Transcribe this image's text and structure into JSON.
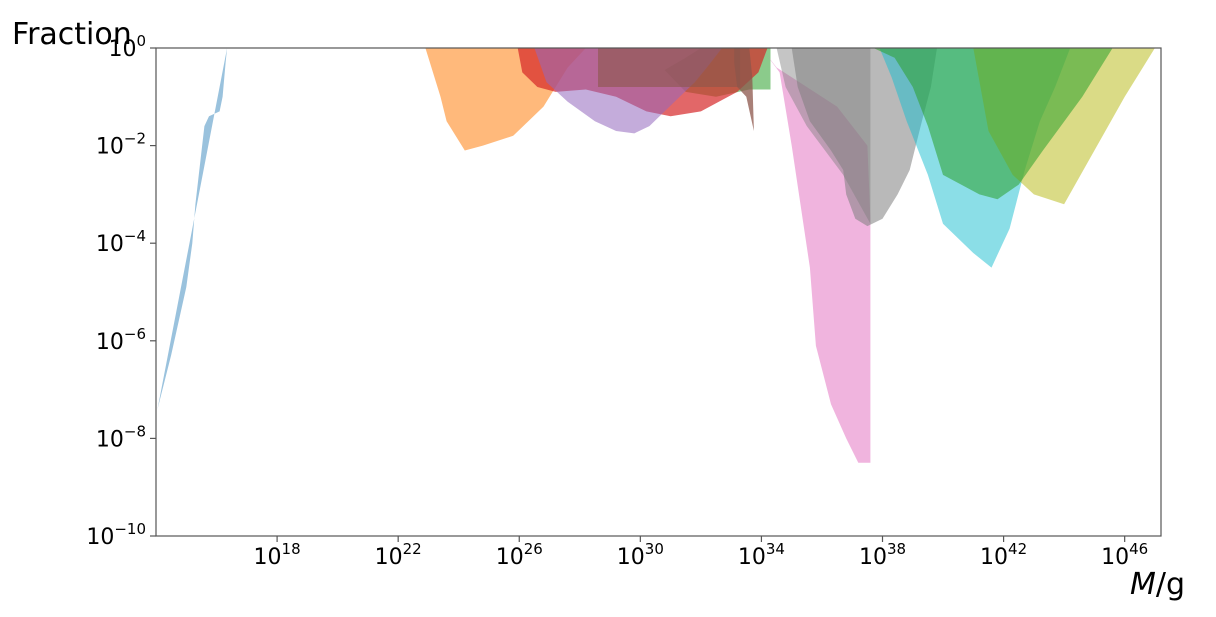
{
  "chart_data": {
    "type": "area",
    "title": "",
    "ylabel": "Fraction",
    "xlabel_italic": "M",
    "xlabel_rest": "/g",
    "x_scale": "log10",
    "y_scale": "log10",
    "xlim_log10": [
      14.0,
      47.2
    ],
    "ylim_log10": [
      -10,
      0
    ],
    "grid": false,
    "x_ticks": [
      {
        "exp": 18,
        "base": "10",
        "sup": "18"
      },
      {
        "exp": 22,
        "base": "10",
        "sup": "22"
      },
      {
        "exp": 26,
        "base": "10",
        "sup": "26"
      },
      {
        "exp": 30,
        "base": "10",
        "sup": "30"
      },
      {
        "exp": 34,
        "base": "10",
        "sup": "34"
      },
      {
        "exp": 38,
        "base": "10",
        "sup": "38"
      },
      {
        "exp": 42,
        "base": "10",
        "sup": "42"
      },
      {
        "exp": 46,
        "base": "10",
        "sup": "46"
      }
    ],
    "y_ticks": [
      {
        "exp": 0,
        "base": "10",
        "sup": "0"
      },
      {
        "exp": -2,
        "base": "10",
        "sup": "−2"
      },
      {
        "exp": -4,
        "base": "10",
        "sup": "−4"
      },
      {
        "exp": -6,
        "base": "10",
        "sup": "−6"
      },
      {
        "exp": -8,
        "base": "10",
        "sup": "−8"
      },
      {
        "exp": -10,
        "base": "10",
        "sup": "−10"
      }
    ],
    "series": [
      {
        "color": "#1f77b4",
        "opacity": 0.45,
        "points": [
          [
            14.05,
            -7.4
          ],
          [
            14.5,
            -6.3
          ],
          [
            15.0,
            -4.9
          ],
          [
            15.2,
            -4.0
          ],
          [
            15.3,
            -3.2
          ],
          [
            15.6,
            -1.6
          ],
          [
            15.75,
            -1.4
          ],
          [
            16.1,
            -1.3
          ],
          [
            16.2,
            -1.0
          ],
          [
            16.3,
            -0.3
          ],
          [
            16.35,
            0
          ]
        ]
      },
      {
        "color": "#ff7f0e",
        "opacity": 0.55,
        "points": [
          [
            22.9,
            0
          ],
          [
            23.4,
            -1.0
          ],
          [
            23.6,
            -1.5
          ],
          [
            24.2,
            -2.1
          ],
          [
            24.8,
            -2.0
          ],
          [
            25.8,
            -1.8
          ],
          [
            26.8,
            -1.2
          ],
          [
            27.6,
            -0.4
          ],
          [
            28.2,
            0
          ]
        ]
      },
      {
        "color": "#2ca02c",
        "opacity": 0.55,
        "points": [
          [
            30.8,
            -0.45
          ],
          [
            31.5,
            -0.2
          ],
          [
            32.0,
            0
          ],
          [
            33.5,
            0
          ],
          [
            34.3,
            0
          ],
          [
            34.3,
            -0.85
          ],
          [
            33.6,
            -0.85
          ],
          [
            32.5,
            -1.0
          ],
          [
            31.5,
            -0.9
          ]
        ]
      },
      {
        "color": "#d62728",
        "opacity": 0.7,
        "points": [
          [
            25.95,
            0
          ],
          [
            26.1,
            -0.5
          ],
          [
            26.6,
            -0.8
          ],
          [
            27.2,
            -0.9
          ],
          [
            28.2,
            -0.85
          ],
          [
            29.2,
            -1.0
          ],
          [
            30.2,
            -1.3
          ],
          [
            31.0,
            -1.4
          ],
          [
            32.0,
            -1.3
          ],
          [
            33.2,
            -0.9
          ],
          [
            33.9,
            -0.5
          ],
          [
            34.2,
            0
          ]
        ]
      },
      {
        "color": "#9467bd",
        "opacity": 0.55,
        "points": [
          [
            26.5,
            0
          ],
          [
            26.9,
            -0.7
          ],
          [
            27.6,
            -1.1
          ],
          [
            28.5,
            -1.5
          ],
          [
            29.2,
            -1.7
          ],
          [
            29.8,
            -1.75
          ],
          [
            30.3,
            -1.6
          ],
          [
            30.8,
            -1.3
          ],
          [
            31.3,
            -1.0
          ],
          [
            31.8,
            -0.7
          ],
          [
            32.2,
            -0.4
          ],
          [
            32.7,
            0
          ]
        ]
      },
      {
        "color": "#8c564b",
        "opacity": 0.6,
        "points": [
          [
            28.6,
            0
          ],
          [
            33.3,
            0
          ],
          [
            33.3,
            -0.8
          ],
          [
            28.6,
            -0.8
          ]
        ]
      },
      {
        "color": "#8c564b",
        "opacity": 0.75,
        "points": [
          [
            33.1,
            0
          ],
          [
            33.6,
            0
          ],
          [
            33.7,
            -0.6
          ],
          [
            33.75,
            -1.7
          ],
          [
            33.5,
            -1.0
          ],
          [
            33.2,
            -0.8
          ],
          [
            33.1,
            -0.3
          ]
        ]
      },
      {
        "color": "#e377c2",
        "opacity": 0.55,
        "points": [
          [
            34.0,
            0
          ],
          [
            34.6,
            -0.5
          ],
          [
            35.0,
            -2.0
          ],
          [
            35.6,
            -4.5
          ],
          [
            35.8,
            -6.1
          ],
          [
            36.3,
            -7.3
          ],
          [
            36.8,
            -8.0
          ],
          [
            37.2,
            -8.5
          ],
          [
            37.6,
            -8.5
          ],
          [
            37.6,
            -3.5
          ],
          [
            37.5,
            -2.0
          ],
          [
            36.5,
            -1.2
          ],
          [
            35.5,
            -0.8
          ],
          [
            34.5,
            -0.4
          ]
        ]
      },
      {
        "color": "#7f7f7f",
        "opacity": 0.55,
        "points": [
          [
            35.0,
            0
          ],
          [
            35.2,
            -0.8
          ],
          [
            35.6,
            -1.5
          ],
          [
            36.3,
            -2.1
          ],
          [
            36.7,
            -2.5
          ],
          [
            36.8,
            -3.0
          ],
          [
            37.1,
            -3.5
          ],
          [
            37.5,
            -3.65
          ],
          [
            38.0,
            -3.5
          ],
          [
            38.5,
            -3.0
          ],
          [
            38.9,
            -2.5
          ],
          [
            39.3,
            -1.5
          ],
          [
            39.6,
            -0.8
          ],
          [
            39.8,
            0
          ]
        ]
      },
      {
        "color": "#7f7f7f",
        "opacity": 0.45,
        "points": [
          [
            34.5,
            0
          ],
          [
            37.6,
            0
          ],
          [
            37.6,
            -3.6
          ],
          [
            36.7,
            -2.6
          ],
          [
            35.5,
            -1.6
          ],
          [
            34.8,
            -0.8
          ]
        ]
      },
      {
        "color": "#17becf",
        "opacity": 0.5,
        "points": [
          [
            37.9,
            0
          ],
          [
            38.3,
            -0.6
          ],
          [
            38.8,
            -1.5
          ],
          [
            39.5,
            -2.6
          ],
          [
            40.0,
            -3.6
          ],
          [
            41.0,
            -4.2
          ],
          [
            41.6,
            -4.5
          ],
          [
            42.2,
            -3.7
          ],
          [
            42.7,
            -2.5
          ],
          [
            43.2,
            -1.5
          ],
          [
            43.7,
            -0.8
          ],
          [
            44.2,
            0
          ]
        ]
      },
      {
        "color": "#bcbd22",
        "opacity": 0.55,
        "points": [
          [
            41.0,
            0
          ],
          [
            47.0,
            0
          ],
          [
            46.0,
            -1.0
          ],
          [
            45.0,
            -2.1
          ],
          [
            44.0,
            -3.2
          ],
          [
            43.0,
            -3.0
          ],
          [
            42.3,
            -2.6
          ],
          [
            41.5,
            -1.7
          ]
        ]
      },
      {
        "color": "#2ca02c",
        "opacity": 0.55,
        "points": [
          [
            37.7,
            0
          ],
          [
            45.6,
            0
          ],
          [
            44.6,
            -1.0
          ],
          [
            43.3,
            -2.1
          ],
          [
            42.5,
            -2.8
          ],
          [
            41.8,
            -3.1
          ],
          [
            41.2,
            -3.0
          ],
          [
            40.0,
            -2.6
          ],
          [
            39.5,
            -1.6
          ],
          [
            39.0,
            -0.8
          ],
          [
            38.4,
            -0.2
          ]
        ]
      }
    ]
  }
}
